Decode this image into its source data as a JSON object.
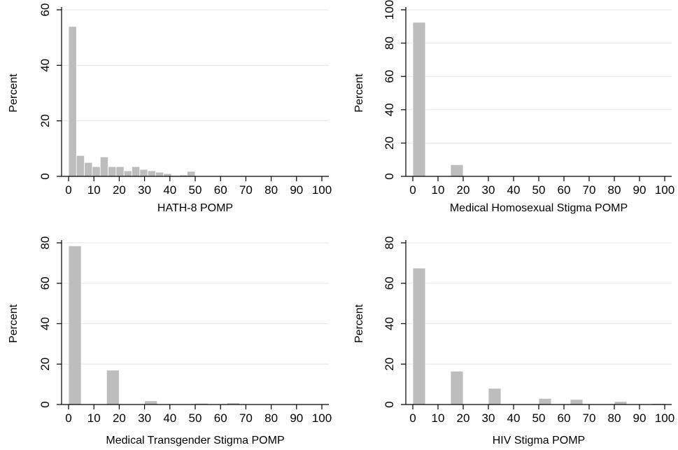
{
  "chart_data": [
    {
      "type": "bar",
      "xlabel": "HATH-8 POMP",
      "ylabel": "Percent",
      "xlim": [
        0,
        100
      ],
      "ylim": [
        0,
        60
      ],
      "xticks": [
        0,
        10,
        20,
        30,
        40,
        50,
        60,
        70,
        80,
        90,
        100
      ],
      "yticks": [
        0,
        20,
        40,
        60
      ],
      "grid": true,
      "bin_width": 3.125,
      "bins": [
        {
          "x": 0,
          "value": 54
        },
        {
          "x": 3.125,
          "value": 7.5
        },
        {
          "x": 6.25,
          "value": 5
        },
        {
          "x": 9.375,
          "value": 3.5
        },
        {
          "x": 12.5,
          "value": 7
        },
        {
          "x": 15.625,
          "value": 3.5
        },
        {
          "x": 18.75,
          "value": 3.5
        },
        {
          "x": 21.875,
          "value": 2
        },
        {
          "x": 25,
          "value": 3.5
        },
        {
          "x": 28.125,
          "value": 2.5
        },
        {
          "x": 31.25,
          "value": 2
        },
        {
          "x": 34.375,
          "value": 1.5
        },
        {
          "x": 37.5,
          "value": 1
        },
        {
          "x": 40.625,
          "value": 0.3
        },
        {
          "x": 43.75,
          "value": 0.5
        },
        {
          "x": 46.875,
          "value": 1.8
        },
        {
          "x": 50,
          "value": 0.2
        },
        {
          "x": 53.125,
          "value": 0.2
        },
        {
          "x": 56.25,
          "value": 0.1
        }
      ]
    },
    {
      "type": "bar",
      "xlabel": "Medical Homosexual Stigma POMP",
      "ylabel": "Percent",
      "xlim": [
        0,
        100
      ],
      "ylim": [
        0,
        100
      ],
      "xticks": [
        0,
        10,
        20,
        30,
        40,
        50,
        60,
        70,
        80,
        90,
        100
      ],
      "yticks": [
        0,
        20,
        40,
        60,
        80,
        100
      ],
      "grid": true,
      "bin_width": 5,
      "bins": [
        {
          "x": 0,
          "value": 92.5
        },
        {
          "x": 15,
          "value": 7
        },
        {
          "x": 30,
          "value": 0.3
        },
        {
          "x": 50,
          "value": 0.2
        },
        {
          "x": 95,
          "value": 0.2
        }
      ]
    },
    {
      "type": "bar",
      "xlabel": "Medical Transgender Stigma POMP",
      "ylabel": "Percent",
      "xlim": [
        0,
        100
      ],
      "ylim": [
        0,
        80
      ],
      "xticks": [
        0,
        10,
        20,
        30,
        40,
        50,
        60,
        70,
        80,
        90,
        100
      ],
      "yticks": [
        0,
        20,
        40,
        60,
        80
      ],
      "grid": true,
      "bin_width": 5,
      "bins": [
        {
          "x": 0,
          "value": 78.5
        },
        {
          "x": 15,
          "value": 17
        },
        {
          "x": 30,
          "value": 1.8
        },
        {
          "x": 50,
          "value": 0.6
        },
        {
          "x": 62.5,
          "value": 0.8
        },
        {
          "x": 80,
          "value": 0.3
        },
        {
          "x": 95,
          "value": 0.3
        }
      ]
    },
    {
      "type": "bar",
      "xlabel": "HIV Stigma POMP",
      "ylabel": "Percent",
      "xlim": [
        0,
        100
      ],
      "ylim": [
        0,
        80
      ],
      "xticks": [
        0,
        10,
        20,
        30,
        40,
        50,
        60,
        70,
        80,
        90,
        100
      ],
      "yticks": [
        0,
        20,
        40,
        60,
        80
      ],
      "grid": true,
      "bin_width": 5,
      "bins": [
        {
          "x": 0,
          "value": 67.5
        },
        {
          "x": 15,
          "value": 16.5
        },
        {
          "x": 30,
          "value": 8
        },
        {
          "x": 50,
          "value": 3
        },
        {
          "x": 62.5,
          "value": 2.5
        },
        {
          "x": 80,
          "value": 1.5
        },
        {
          "x": 95,
          "value": 0.5
        }
      ]
    }
  ]
}
